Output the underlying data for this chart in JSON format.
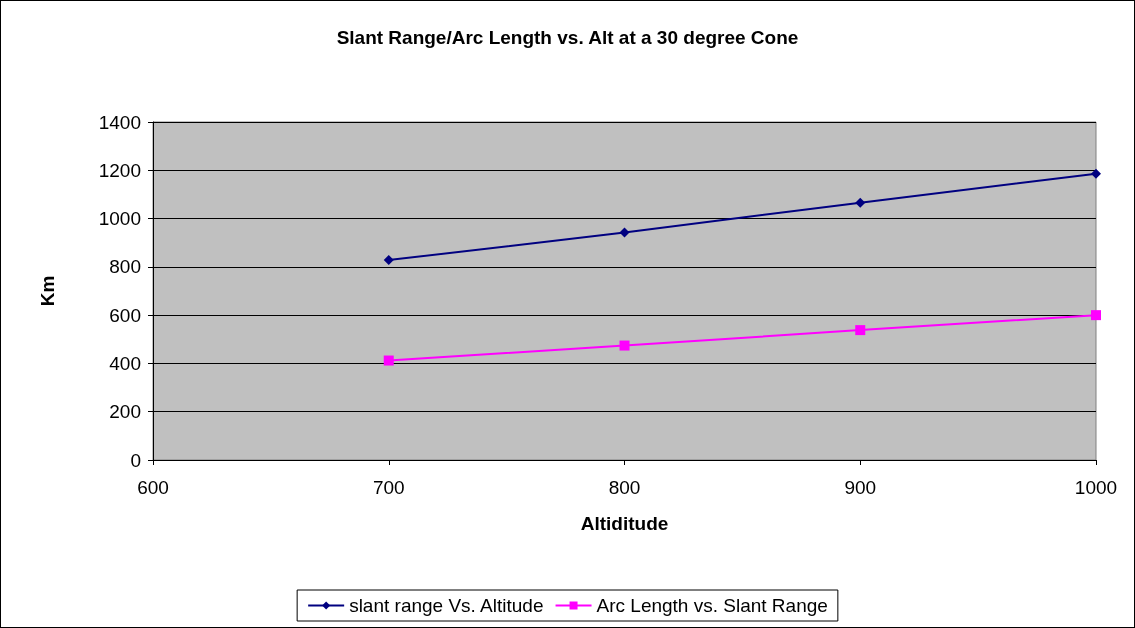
{
  "chart_data": {
    "type": "line",
    "title": "Slant Range/Arc Length vs. Alt at a 30 degree Cone",
    "xlabel": "Altiditude",
    "ylabel": "Km",
    "x": [
      700,
      800,
      900,
      1000
    ],
    "series": [
      {
        "name": "slant range Vs. Altitude",
        "color": "#000080",
        "marker": "diamond",
        "values": [
          828,
          942,
          1066,
          1186
        ]
      },
      {
        "name": "Arc Length vs. Slant Range",
        "color": "#ff00ff",
        "marker": "square",
        "values": [
          412,
          474,
          538,
          600
        ]
      }
    ],
    "xlim": [
      600,
      1000
    ],
    "xticks": [
      600,
      700,
      800,
      900,
      1000
    ],
    "ylim": [
      0,
      1400
    ],
    "yticks": [
      0,
      200,
      400,
      600,
      800,
      1000,
      1200,
      1400
    ],
    "grid": "y",
    "legend": "bottom",
    "line_style": "solid"
  }
}
